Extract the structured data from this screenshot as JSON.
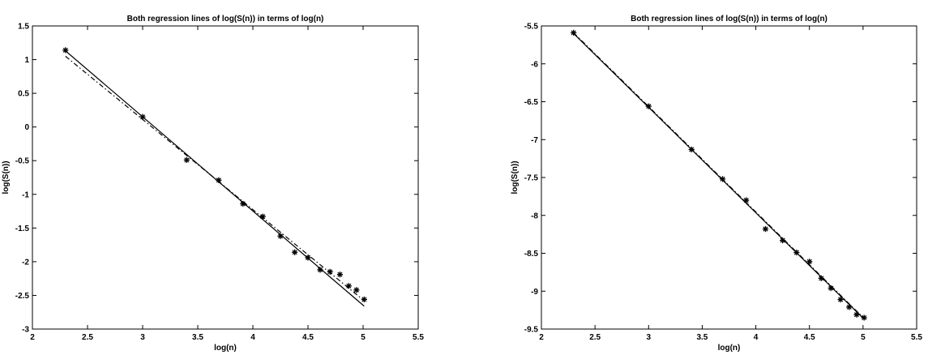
{
  "chart_data": [
    {
      "type": "line",
      "title": "Both regression lines of log(S(n)) in terms of log(n)",
      "xlabel": "log(n)",
      "ylabel": "log(S(n))",
      "xlim": [
        2,
        5.5
      ],
      "ylim": [
        -3,
        1.5
      ],
      "xticks": [
        "2",
        "2.5",
        "3",
        "3.5",
        "4",
        "4.5",
        "5",
        "5.5"
      ],
      "yticks": [
        "1.5",
        "1",
        "0.5",
        "0",
        "-0.5",
        "-1",
        "-1.5",
        "-2",
        "-2.5",
        "-3"
      ],
      "grid": false,
      "points": {
        "x": [
          2.3,
          3.0,
          3.4,
          3.69,
          3.91,
          4.09,
          4.25,
          4.38,
          4.5,
          4.61,
          4.7,
          4.79,
          4.87,
          4.94,
          5.01
        ],
        "y": [
          1.14,
          0.15,
          -0.49,
          -0.79,
          -1.14,
          -1.33,
          -1.62,
          -1.86,
          -1.94,
          -2.12,
          -2.15,
          -2.19,
          -2.36,
          -2.42,
          -2.56
        ],
        "marker": "*"
      },
      "lines": [
        {
          "style": "solid",
          "x": [
            2.3,
            5.01
          ],
          "y": [
            1.13,
            -2.66
          ]
        },
        {
          "style": "dashed",
          "x": [
            2.3,
            5.01
          ],
          "y": [
            1.05,
            -2.58
          ]
        }
      ]
    },
    {
      "type": "line",
      "title": "Both regression lines of log(S(n)) in terms of log(n)",
      "xlabel": "log(n)",
      "ylabel": "log(S(n))",
      "xlim": [
        2,
        5.5
      ],
      "ylim": [
        -9.5,
        -5.5
      ],
      "xticks": [
        "2",
        "2.5",
        "3",
        "3.5",
        "4",
        "4.5",
        "5",
        "5.5"
      ],
      "yticks": [
        "-5.5",
        "-6",
        "-6.5",
        "-7",
        "-7.5",
        "-8",
        "-8.5",
        "-9",
        "-9.5"
      ],
      "grid": false,
      "points": {
        "x": [
          2.3,
          3.0,
          3.4,
          3.69,
          3.91,
          4.09,
          4.25,
          4.38,
          4.5,
          4.61,
          4.7,
          4.79,
          4.87,
          4.94,
          5.01
        ],
        "y": [
          -5.59,
          -6.56,
          -7.13,
          -7.52,
          -7.8,
          -8.18,
          -8.33,
          -8.49,
          -8.61,
          -8.83,
          -8.96,
          -9.11,
          -9.21,
          -9.31,
          -9.35
        ],
        "marker": "*"
      },
      "lines": [
        {
          "style": "solid",
          "x": [
            2.3,
            5.01
          ],
          "y": [
            -5.6,
            -9.37
          ]
        },
        {
          "style": "dashed",
          "x": [
            2.3,
            5.01
          ],
          "y": [
            -5.59,
            -9.36
          ]
        }
      ]
    }
  ]
}
